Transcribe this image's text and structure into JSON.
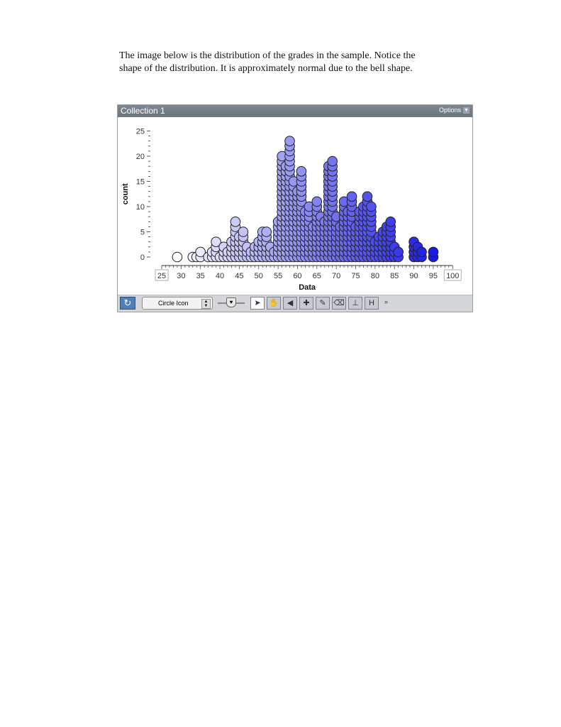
{
  "paragraph": {
    "line1": "The image below is the distribution of the grades in the sample. Notice the",
    "line2": "shape of the distribution. It is approximately normal due to the bell shape."
  },
  "window": {
    "title": "Collection 1",
    "options_label": "Options"
  },
  "toolbar": {
    "rerandomize_icon": "↻",
    "select_label": "Circle Icon",
    "tools": [
      {
        "name": "select-arrow-icon",
        "glyph": "➤",
        "selected": true
      },
      {
        "name": "hand-icon",
        "glyph": "✋",
        "selected": false
      },
      {
        "name": "drag-arrow-icon",
        "glyph": "◀",
        "selected": false
      },
      {
        "name": "point-add-icon",
        "glyph": "✚",
        "selected": false
      },
      {
        "name": "pencil-icon",
        "glyph": "✎",
        "selected": false
      },
      {
        "name": "eraser-icon",
        "glyph": "⌫",
        "selected": false
      },
      {
        "name": "ruler-icon",
        "glyph": "⊥",
        "selected": false
      },
      {
        "name": "hide-icon",
        "glyph": "H",
        "selected": false
      }
    ],
    "more_label": "»"
  },
  "chart_data": {
    "type": "scatter",
    "xlabel": "Data",
    "ylabel": "count",
    "xlim": [
      25,
      100
    ],
    "ylim": [
      0,
      25
    ],
    "x_ticks": [
      25,
      30,
      35,
      40,
      45,
      50,
      55,
      60,
      65,
      70,
      75,
      80,
      85,
      90,
      95,
      100
    ],
    "y_ticks": [
      0,
      5,
      10,
      15,
      20,
      25
    ],
    "color_low": "#ffffff",
    "color_high": "#1a1ae6",
    "columns": [
      {
        "x": 29,
        "n": 1
      },
      {
        "x": 33,
        "n": 1
      },
      {
        "x": 34,
        "n": 1
      },
      {
        "x": 35,
        "n": 2
      },
      {
        "x": 37,
        "n": 1
      },
      {
        "x": 38,
        "n": 2
      },
      {
        "x": 39,
        "n": 4
      },
      {
        "x": 40,
        "n": 1
      },
      {
        "x": 41,
        "n": 3
      },
      {
        "x": 42,
        "n": 2
      },
      {
        "x": 43,
        "n": 4
      },
      {
        "x": 44,
        "n": 8
      },
      {
        "x": 45,
        "n": 5
      },
      {
        "x": 46,
        "n": 6
      },
      {
        "x": 47,
        "n": 3
      },
      {
        "x": 48,
        "n": 2
      },
      {
        "x": 49,
        "n": 3
      },
      {
        "x": 50,
        "n": 4
      },
      {
        "x": 51,
        "n": 6
      },
      {
        "x": 52,
        "n": 6
      },
      {
        "x": 53,
        "n": 3
      },
      {
        "x": 54,
        "n": 2
      },
      {
        "x": 55,
        "n": 8
      },
      {
        "x": 56,
        "n": 21
      },
      {
        "x": 57,
        "n": 19
      },
      {
        "x": 58,
        "n": 24
      },
      {
        "x": 59,
        "n": 16
      },
      {
        "x": 60,
        "n": 14
      },
      {
        "x": 61,
        "n": 18
      },
      {
        "x": 62,
        "n": 10
      },
      {
        "x": 63,
        "n": 11
      },
      {
        "x": 64,
        "n": 7
      },
      {
        "x": 65,
        "n": 12
      },
      {
        "x": 66,
        "n": 9
      },
      {
        "x": 67,
        "n": 8
      },
      {
        "x": 68,
        "n": 19
      },
      {
        "x": 69,
        "n": 20
      },
      {
        "x": 70,
        "n": 9
      },
      {
        "x": 71,
        "n": 7
      },
      {
        "x": 72,
        "n": 12
      },
      {
        "x": 73,
        "n": 10
      },
      {
        "x": 74,
        "n": 13
      },
      {
        "x": 75,
        "n": 7
      },
      {
        "x": 76,
        "n": 10
      },
      {
        "x": 77,
        "n": 11
      },
      {
        "x": 78,
        "n": 13
      },
      {
        "x": 79,
        "n": 11
      },
      {
        "x": 80,
        "n": 4
      },
      {
        "x": 81,
        "n": 5
      },
      {
        "x": 82,
        "n": 6
      },
      {
        "x": 83,
        "n": 7
      },
      {
        "x": 84,
        "n": 8
      },
      {
        "x": 85,
        "n": 3
      },
      {
        "x": 86,
        "n": 2
      },
      {
        "x": 90,
        "n": 4
      },
      {
        "x": 91,
        "n": 3
      },
      {
        "x": 92,
        "n": 2
      },
      {
        "x": 95,
        "n": 2
      }
    ]
  }
}
